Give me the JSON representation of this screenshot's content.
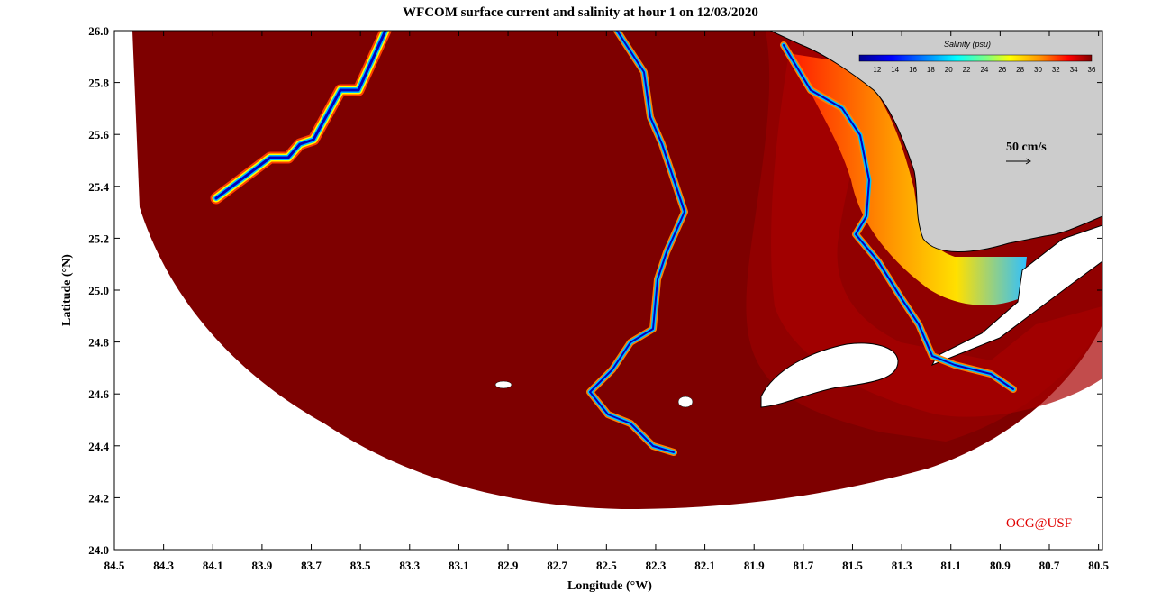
{
  "title": "WFCOM surface current and salinity at hour 1 on 12/03/2020",
  "xlabel": "Longitude (°W)",
  "ylabel": "Latitude (°N)",
  "x_ticks": [
    "84.5",
    "84.3",
    "84.1",
    "83.9",
    "83.7",
    "83.5",
    "83.3",
    "83.1",
    "82.9",
    "82.7",
    "82.5",
    "82.3",
    "82.1",
    "81.9",
    "81.7",
    "81.5",
    "81.3",
    "81.1",
    "80.9",
    "80.7",
    "80.5"
  ],
  "y_ticks": [
    "24.0",
    "24.2",
    "24.4",
    "24.6",
    "24.8",
    "25.0",
    "25.2",
    "25.4",
    "25.6",
    "25.8",
    "26.0"
  ],
  "colorbar": {
    "title": "Salinity (psu)",
    "ticks": [
      "12",
      "14",
      "16",
      "18",
      "20",
      "22",
      "24",
      "26",
      "28",
      "30",
      "32",
      "34",
      "36"
    ],
    "range": [
      10,
      36
    ]
  },
  "scale_vector": "50 cm/s",
  "credit": "OCG@USF",
  "colors": {
    "ocean_deep": "#7e0000",
    "land": "#cccccc",
    "credit": "#e00000"
  }
}
